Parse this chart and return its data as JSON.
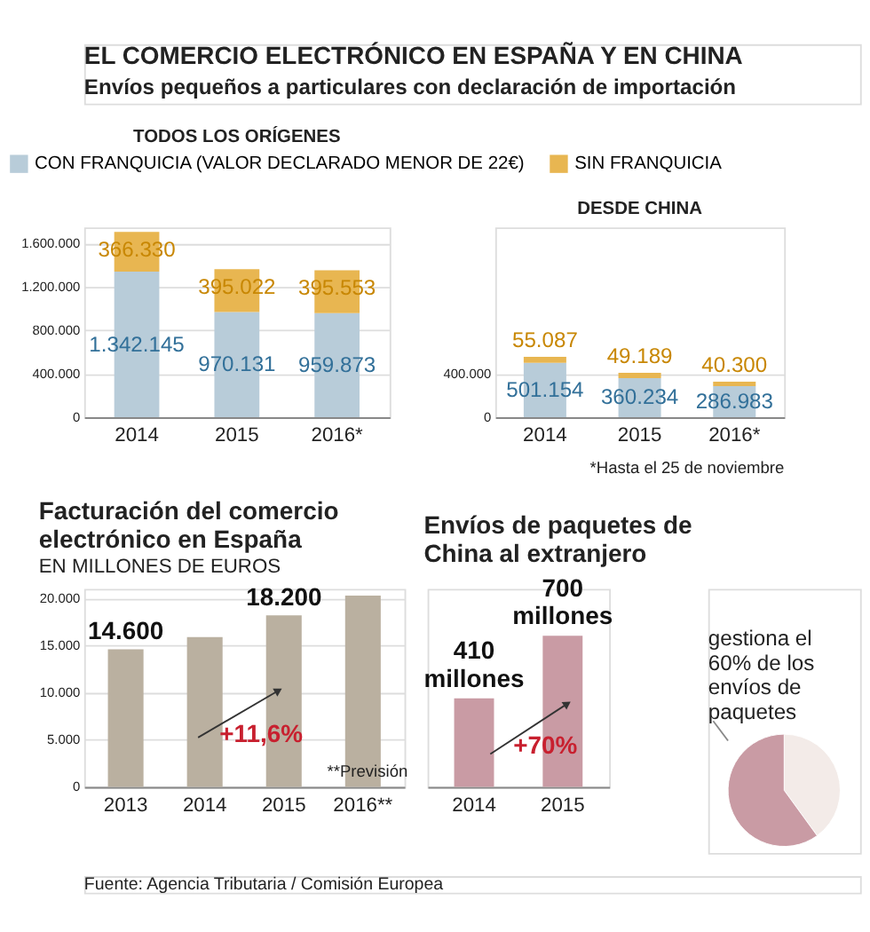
{
  "chart_data": [
    {
      "type": "other",
      "title": "EL COMERCIO ELECTRÓNICO EN ESPAÑA Y EN CHINA",
      "subtitle": "Envíos pequeños a particulares con declaración de importación"
    },
    {
      "type": "bar",
      "title": "TODOS LOS ORÍGENES",
      "categories": [
        "2014",
        "2015",
        "2016*"
      ],
      "stacked": true,
      "series": [
        {
          "name": "CON FRANQUICIA (VALOR DECLARADO MENOR DE 22€)",
          "color": "#b8ccd9",
          "values": [
            1342145,
            970131,
            959873
          ],
          "value_labels": [
            "1.342.145",
            "970.131",
            "959.873"
          ]
        },
        {
          "name": "SIN FRANQUICIA",
          "color": "#e8b651",
          "values": [
            366330,
            395022,
            395553
          ],
          "value_labels": [
            "366.330",
            "395.022",
            "395.553"
          ]
        }
      ],
      "ylim": [
        0,
        1750000
      ],
      "yticks": [
        0,
        {
          "value": 400000,
          "label": "400.000"
        },
        {
          "value": 800000,
          "label": "800.000"
        },
        {
          "value": 1200000,
          "label": "1.200.000"
        },
        {
          "value": 1600000,
          "label": "1.600.000"
        }
      ],
      "grid": "y",
      "legend": "top"
    },
    {
      "type": "bar",
      "title": "DESDE CHINA",
      "categories": [
        "2014",
        "2015",
        "2016*"
      ],
      "stacked": true,
      "series": [
        {
          "color": "#b8ccd9",
          "values": [
            501154,
            360234,
            286983
          ],
          "value_labels": [
            "501.154",
            "360.234",
            "286.983"
          ]
        },
        {
          "color": "#e8b651",
          "values": [
            55087,
            49189,
            40300
          ],
          "value_labels": [
            "55.087",
            "49.189",
            "40.300"
          ]
        }
      ],
      "ylim": [
        0,
        1750000
      ],
      "yticks": [
        0,
        {
          "value": 400000,
          "label": "400.000"
        }
      ],
      "grid": "y",
      "annotations": [
        "*Hasta el 25 de noviembre"
      ]
    },
    {
      "type": "bar",
      "title": "Facturación del comercio electrónico en España",
      "subtitle": "EN MILLONES DE EUROS",
      "categories": [
        "2013",
        "2014",
        "2015",
        "2016**"
      ],
      "values": [
        14600,
        15900,
        18200,
        20300
      ],
      "color": "#bab0a0",
      "value_labels": [
        "14.600",
        null,
        "18.200",
        null
      ],
      "ylim": [
        0,
        21000
      ],
      "yticks": [
        0,
        {
          "value": 5000,
          "label": "5.000"
        },
        {
          "value": 10000,
          "label": "10.000"
        },
        {
          "value": 15000,
          "label": "15.000"
        },
        {
          "value": 20000,
          "label": "20.000"
        }
      ],
      "grid": "y",
      "annotations": [
        "+11,6%",
        "**Previsión"
      ]
    },
    {
      "type": "bar",
      "title": "Envíos de paquetes de China al extranjero",
      "categories": [
        "2014",
        "2015"
      ],
      "values": [
        410,
        700
      ],
      "color": "#c99ba4",
      "value_labels": [
        "410 millones",
        "700 millones"
      ],
      "annotations": [
        "+70%"
      ]
    },
    {
      "type": "pie",
      "categories": [
        null,
        null
      ],
      "values": [
        40,
        60
      ],
      "colors": [
        "#f3ebe8",
        "#c99ba4"
      ],
      "annotations": [
        "gestiona el 60% de los envíos de paquetes"
      ]
    },
    {
      "type": "other",
      "annotations": [
        "Fuente: Agencia Tributaria / Comisión Europea"
      ]
    }
  ]
}
